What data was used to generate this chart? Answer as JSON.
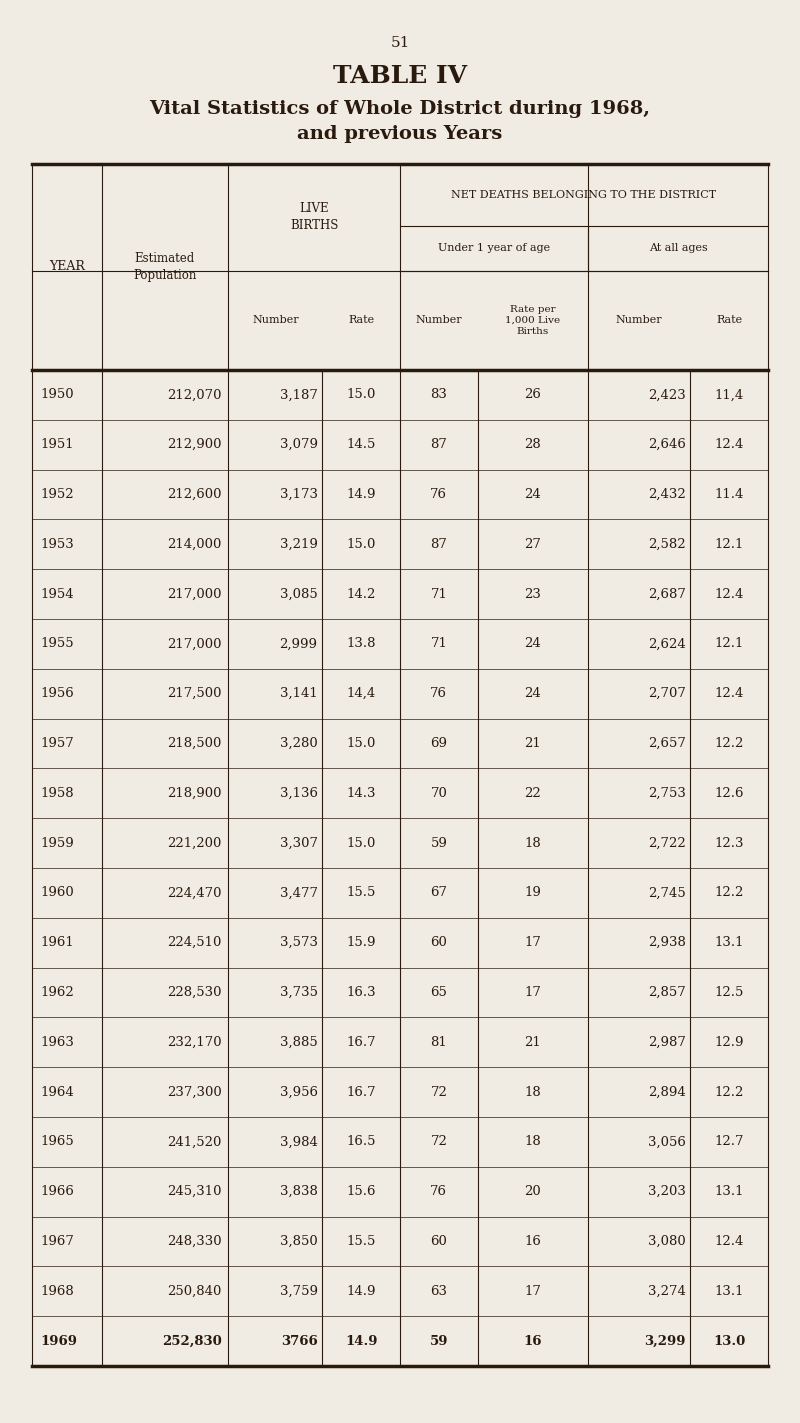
{
  "page_number": "51",
  "title_line1": "TABLE IV",
  "title_line2": "Vital Statistics of Whole District during 1968,",
  "title_line3": "and previous Years",
  "background_color": "#f0ece4",
  "text_color": "#2a1a0e",
  "header_row1_col1": "YEAR",
  "header_row1_col2": "Estimated\nPopulation",
  "header_row1_col3": "LIVE\nBIRTHS",
  "header_row1_col4": "NET DEATHS BELONGING TO THE DISTRICT",
  "header_row2_col4a": "Under 1 year of age",
  "header_row2_col4b": "At all ages",
  "header_row3_col3a": "Number",
  "header_row3_col3b": "Rate",
  "header_row3_col4a": "Number",
  "header_row3_col4b": "Rate per\n1,000 Live\nBirths",
  "header_row3_col4c": "Number",
  "header_row3_col4d": "Rate",
  "rows": [
    [
      "1950",
      "212,070",
      "3,187",
      "15.0",
      "83",
      "26",
      "2,423",
      "11,4"
    ],
    [
      "1951",
      "212,900",
      "3,079",
      "14.5",
      "87",
      "28",
      "2,646",
      "12.4"
    ],
    [
      "1952",
      "212,600",
      "3,173",
      "14.9",
      "76",
      "24",
      "2,432",
      "11.4"
    ],
    [
      "1953",
      "214,000",
      "3,219",
      "15.0",
      "87",
      "27",
      "2,582",
      "12.1"
    ],
    [
      "1954",
      "217,000",
      "3,085",
      "14.2",
      "71",
      "23",
      "2,687",
      "12.4"
    ],
    [
      "1955",
      "217,000",
      "2,999",
      "13.8",
      "71",
      "24",
      "2,624",
      "12.1"
    ],
    [
      "1956",
      "217,500",
      "3,141",
      "14,4",
      "76",
      "24",
      "2,707",
      "12.4"
    ],
    [
      "1957",
      "218,500",
      "3,280",
      "15.0",
      "69",
      "21",
      "2,657",
      "12.2"
    ],
    [
      "1958",
      "218,900",
      "3,136",
      "14.3",
      "70",
      "22",
      "2,753",
      "12.6"
    ],
    [
      "1959",
      "221,200",
      "3,307",
      "15.0",
      "59",
      "18",
      "2,722",
      "12.3"
    ],
    [
      "1960",
      "224,470",
      "3,477",
      "15.5",
      "67",
      "19",
      "2,745",
      "12.2"
    ],
    [
      "1961",
      "224,510",
      "3,573",
      "15.9",
      "60",
      "17",
      "2,938",
      "13.1"
    ],
    [
      "1962",
      "228,530",
      "3,735",
      "16.3",
      "65",
      "17",
      "2,857",
      "12.5"
    ],
    [
      "1963",
      "232,170",
      "3,885",
      "16.7",
      "81",
      "21",
      "2,987",
      "12.9"
    ],
    [
      "1964",
      "237,300",
      "3,956",
      "16.7",
      "72",
      "18",
      "2,894",
      "12.2"
    ],
    [
      "1965",
      "241,520",
      "3,984",
      "16.5",
      "72",
      "18",
      "3,056",
      "12.7"
    ],
    [
      "1966",
      "245,310",
      "3,838",
      "15.6",
      "76",
      "20",
      "3,203",
      "13.1"
    ],
    [
      "1967",
      "248,330",
      "3,850",
      "15.5",
      "60",
      "16",
      "3,080",
      "12.4"
    ],
    [
      "1968",
      "250,840",
      "3,759",
      "14.9",
      "63",
      "17",
      "3,274",
      "13.1"
    ],
    [
      "1969",
      "252,830",
      "3766",
      "14.9",
      "59",
      "16",
      "3,299",
      "13.0"
    ]
  ],
  "last_row_bold": true
}
